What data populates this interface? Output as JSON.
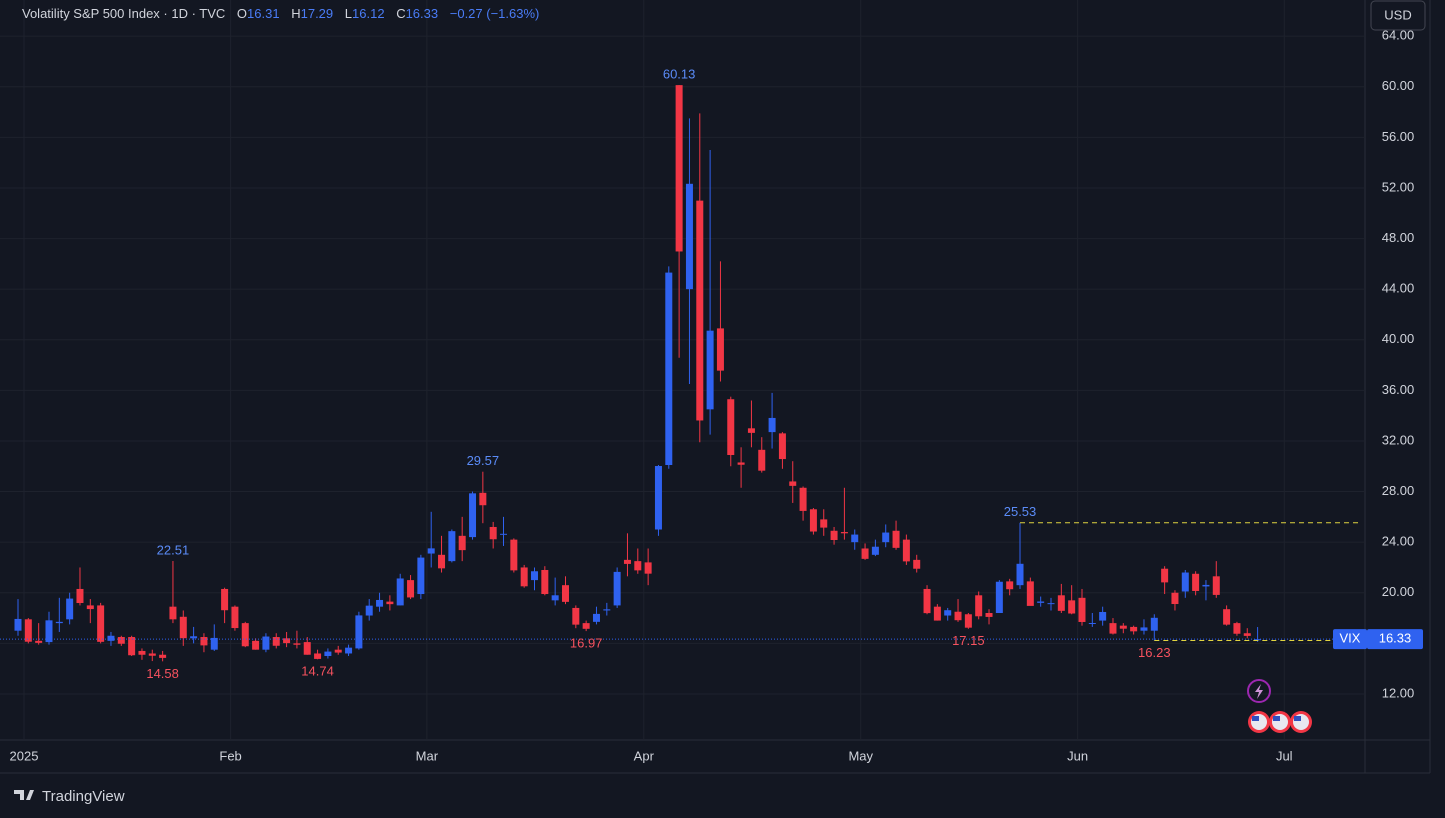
{
  "chart_data": {
    "type": "candlestick",
    "title": "Volatility S&P 500 Index · 1D · TVC",
    "ohlc_labels": [
      "O",
      "H",
      "L",
      "C"
    ],
    "change": "−0.27 (−1.63%)",
    "currency": "USD",
    "symbol": "VIX",
    "brand": "TradingView",
    "up_color": "#2f62f0",
    "down_color": "#f23645",
    "ylim": [
      8.36,
      66.86
    ],
    "yticks": [
      {
        "value": 12,
        "label": "12.00"
      },
      {
        "value": 16,
        "label": "16.00"
      },
      {
        "value": 20,
        "label": "20.00"
      },
      {
        "value": 24,
        "label": "24.00"
      },
      {
        "value": 28,
        "label": "28.00"
      },
      {
        "value": 32,
        "label": "32.00"
      },
      {
        "value": 36,
        "label": "36.00"
      },
      {
        "value": 40,
        "label": "40.00"
      },
      {
        "value": 44,
        "label": "44.00"
      },
      {
        "value": 48,
        "label": "48.00"
      },
      {
        "value": 52,
        "label": "52.00"
      },
      {
        "value": 56,
        "label": "56.00"
      },
      {
        "value": 60,
        "label": "60.00"
      },
      {
        "value": 64,
        "label": "64.00"
      }
    ],
    "xticks": [
      {
        "value": 0,
        "label": "2025"
      },
      {
        "value": 20,
        "label": "Feb"
      },
      {
        "value": 39,
        "label": "Mar"
      },
      {
        "value": 60,
        "label": "Apr"
      },
      {
        "value": 81,
        "label": "May"
      },
      {
        "value": 102,
        "label": "Jun"
      },
      {
        "value": 122,
        "label": "Jul"
      }
    ],
    "grid": true,
    "ohlc": [
      [
        17.0,
        19.5,
        16.6,
        17.93
      ],
      [
        17.9,
        18.0,
        16.0,
        16.13
      ],
      [
        16.2,
        17.6,
        15.9,
        16.04
      ],
      [
        16.1,
        18.5,
        15.9,
        17.82
      ],
      [
        17.6,
        19.6,
        16.9,
        17.7
      ],
      [
        17.9,
        20.0,
        17.5,
        19.54
      ],
      [
        20.3,
        22.0,
        19.0,
        19.19
      ],
      [
        19.0,
        19.5,
        17.6,
        18.71
      ],
      [
        19.0,
        19.2,
        16.0,
        16.12
      ],
      [
        16.2,
        16.9,
        15.8,
        16.6
      ],
      [
        16.5,
        16.6,
        15.8,
        15.97
      ],
      [
        16.5,
        16.6,
        15.0,
        15.06
      ],
      [
        15.4,
        15.6,
        14.7,
        15.1
      ],
      [
        15.2,
        15.5,
        14.6,
        15.02
      ],
      [
        15.1,
        15.4,
        14.58,
        14.85
      ],
      [
        18.9,
        22.51,
        17.6,
        17.9
      ],
      [
        18.1,
        18.6,
        15.8,
        16.41
      ],
      [
        16.4,
        17.3,
        16.0,
        16.56
      ],
      [
        16.5,
        16.8,
        15.3,
        15.84
      ],
      [
        15.5,
        17.5,
        15.4,
        16.43
      ],
      [
        20.3,
        20.4,
        17.6,
        18.62
      ],
      [
        18.9,
        19.0,
        17.0,
        17.21
      ],
      [
        17.6,
        17.7,
        15.7,
        15.77
      ],
      [
        16.2,
        16.4,
        15.5,
        15.5
      ],
      [
        15.5,
        16.8,
        15.3,
        16.54
      ],
      [
        16.5,
        16.8,
        15.6,
        15.81
      ],
      [
        16.4,
        16.9,
        15.7,
        16.02
      ],
      [
        16.0,
        17.0,
        15.6,
        15.89
      ],
      [
        16.1,
        16.5,
        15.1,
        15.1
      ],
      [
        15.2,
        15.5,
        14.74,
        14.77
      ],
      [
        15.0,
        15.6,
        14.8,
        15.35
      ],
      [
        15.5,
        15.8,
        15.1,
        15.27
      ],
      [
        15.2,
        15.9,
        15.0,
        15.66
      ],
      [
        15.6,
        18.5,
        15.5,
        18.21
      ],
      [
        18.2,
        19.5,
        17.8,
        18.98
      ],
      [
        18.9,
        20.0,
        18.5,
        19.43
      ],
      [
        19.3,
        19.8,
        18.6,
        19.1
      ],
      [
        19.0,
        21.5,
        19.0,
        21.13
      ],
      [
        21.0,
        21.4,
        19.5,
        19.63
      ],
      [
        19.9,
        23.0,
        19.5,
        22.78
      ],
      [
        23.1,
        26.4,
        22.0,
        23.51
      ],
      [
        23.0,
        24.5,
        21.6,
        21.93
      ],
      [
        22.5,
        25.0,
        22.4,
        24.87
      ],
      [
        24.5,
        26.0,
        22.5,
        23.37
      ],
      [
        24.4,
        28.0,
        24.2,
        27.86
      ],
      [
        27.9,
        29.57,
        25.5,
        26.92
      ],
      [
        25.2,
        25.6,
        23.5,
        24.23
      ],
      [
        24.6,
        26.0,
        23.7,
        24.66
      ],
      [
        24.2,
        24.3,
        21.6,
        21.77
      ],
      [
        22.0,
        22.2,
        20.4,
        20.51
      ],
      [
        21.0,
        22.0,
        20.2,
        21.7
      ],
      [
        21.8,
        22.1,
        19.8,
        19.9
      ],
      [
        19.4,
        21.2,
        19.0,
        19.8
      ],
      [
        20.6,
        21.3,
        19.1,
        19.28
      ],
      [
        18.8,
        19.0,
        17.2,
        17.48
      ],
      [
        17.6,
        17.8,
        16.97,
        17.15
      ],
      [
        17.7,
        18.9,
        17.5,
        18.33
      ],
      [
        18.6,
        19.2,
        18.2,
        18.69
      ],
      [
        19.0,
        22.0,
        18.8,
        21.65
      ],
      [
        22.6,
        24.7,
        21.3,
        22.28
      ],
      [
        22.5,
        23.5,
        21.5,
        21.77
      ],
      [
        22.4,
        23.5,
        20.6,
        21.51
      ],
      [
        25.0,
        30.1,
        24.5,
        30.02
      ],
      [
        30.1,
        45.8,
        29.8,
        45.31
      ],
      [
        60.13,
        60.13,
        38.58,
        46.98
      ],
      [
        44.0,
        57.5,
        36.5,
        52.33
      ],
      [
        51.0,
        57.9,
        31.9,
        33.62
      ],
      [
        34.5,
        55.0,
        32.5,
        40.72
      ],
      [
        40.9,
        46.2,
        36.7,
        37.56
      ],
      [
        35.3,
        35.5,
        30.0,
        30.89
      ],
      [
        30.3,
        31.5,
        28.3,
        30.12
      ],
      [
        33.0,
        35.2,
        31.5,
        32.64
      ],
      [
        31.3,
        32.3,
        29.5,
        29.65
      ],
      [
        32.7,
        35.8,
        31.4,
        33.82
      ],
      [
        32.6,
        32.7,
        29.8,
        30.57
      ],
      [
        28.8,
        30.4,
        27.1,
        28.45
      ],
      [
        28.3,
        28.4,
        25.7,
        26.47
      ],
      [
        26.6,
        26.7,
        24.6,
        24.84
      ],
      [
        25.8,
        26.6,
        24.5,
        25.15
      ],
      [
        24.9,
        25.2,
        23.8,
        24.17
      ],
      [
        24.8,
        28.3,
        24.2,
        24.7
      ],
      [
        24.0,
        25.0,
        23.4,
        24.6
      ],
      [
        23.5,
        23.9,
        22.6,
        22.68
      ],
      [
        23.0,
        24.2,
        22.9,
        23.64
      ],
      [
        24.0,
        25.4,
        23.6,
        24.76
      ],
      [
        24.9,
        25.7,
        23.4,
        23.55
      ],
      [
        24.2,
        24.6,
        22.2,
        22.48
      ],
      [
        22.6,
        23.0,
        21.6,
        21.9
      ],
      [
        20.3,
        20.6,
        18.3,
        18.39
      ],
      [
        18.9,
        19.1,
        17.8,
        17.8
      ],
      [
        18.2,
        18.8,
        17.8,
        18.62
      ],
      [
        18.5,
        19.5,
        17.7,
        17.83
      ],
      [
        18.3,
        18.4,
        17.15,
        17.24
      ],
      [
        19.8,
        20.1,
        17.9,
        18.14
      ],
      [
        18.4,
        18.7,
        17.5,
        18.09
      ],
      [
        18.4,
        21.0,
        18.4,
        20.87
      ],
      [
        20.9,
        21.1,
        19.8,
        20.28
      ],
      [
        20.6,
        25.53,
        20.3,
        22.29
      ],
      [
        20.9,
        21.2,
        19.0,
        18.96
      ],
      [
        19.2,
        19.7,
        18.9,
        19.31
      ],
      [
        19.1,
        19.6,
        18.6,
        19.18
      ],
      [
        19.8,
        20.7,
        18.4,
        18.57
      ],
      [
        19.4,
        20.6,
        18.3,
        18.36
      ],
      [
        19.6,
        20.3,
        17.4,
        17.69
      ],
      [
        17.6,
        18.4,
        17.3,
        17.61
      ],
      [
        17.8,
        18.9,
        17.4,
        18.48
      ],
      [
        17.6,
        18.0,
        16.7,
        16.77
      ],
      [
        17.4,
        17.6,
        16.8,
        17.16
      ],
      [
        17.3,
        17.4,
        16.7,
        16.95
      ],
      [
        17.0,
        17.9,
        16.7,
        17.26
      ],
      [
        17.0,
        18.3,
        16.23,
        18.02
      ],
      [
        21.9,
        22.1,
        19.9,
        20.82
      ],
      [
        20.0,
        20.2,
        18.6,
        19.11
      ],
      [
        20.1,
        21.8,
        19.6,
        21.6
      ],
      [
        21.5,
        21.7,
        19.8,
        20.14
      ],
      [
        20.5,
        21.0,
        19.4,
        20.62
      ],
      [
        21.3,
        22.5,
        19.6,
        19.83
      ],
      [
        18.7,
        19.0,
        17.4,
        17.48
      ],
      [
        17.6,
        17.7,
        16.6,
        16.76
      ],
      [
        16.8,
        17.2,
        16.4,
        16.59
      ],
      [
        16.31,
        17.29,
        16.12,
        16.33
      ]
    ]
  }
}
